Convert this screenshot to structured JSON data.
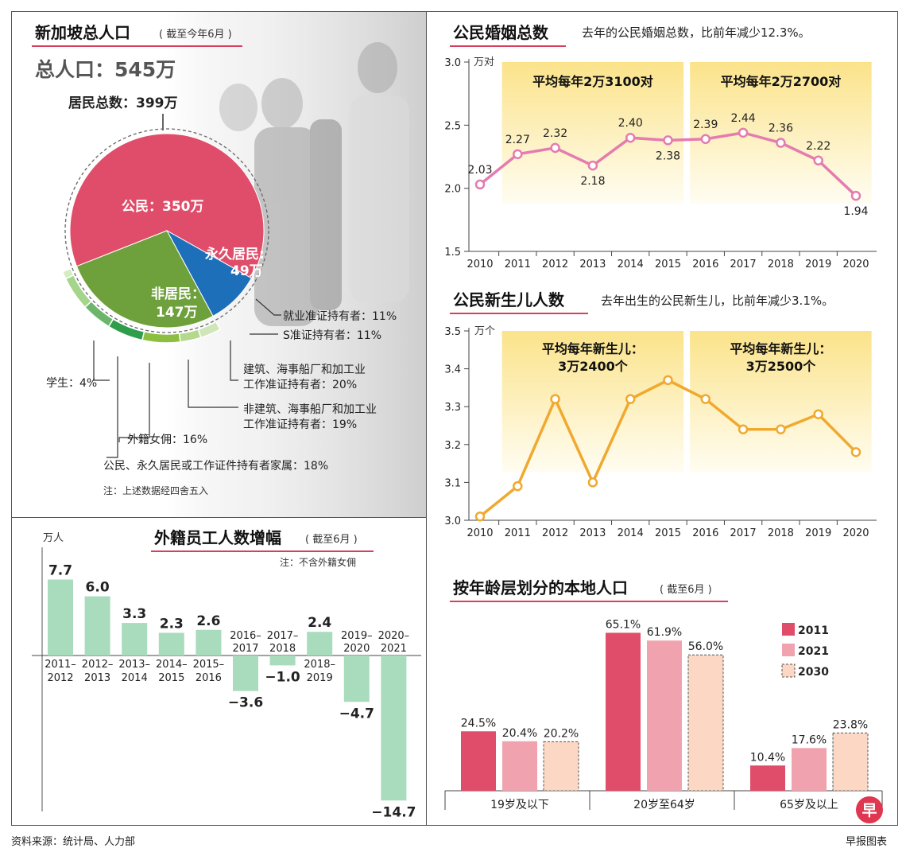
{
  "population": {
    "title": "新加坡总人口",
    "subtitle": "截至今年6月",
    "total": "总人口：545万",
    "residents": "居民总数：399万",
    "pie": [
      {
        "label": "公民：350万",
        "value": 350,
        "color": "#e04d6a"
      },
      {
        "label_line1": "永久居民:",
        "label_line2": "49万",
        "value": 49,
        "color": "#1e6fba"
      },
      {
        "label_line1": "非居民：",
        "label_line2": "147万",
        "value": 147,
        "color": "#6ea03c"
      }
    ],
    "breakdown": [
      {
        "label": "就业准证持有者：11%",
        "value": 11,
        "color": "#cfe6b8"
      },
      {
        "label": "S准证持有者：11%",
        "value": 11,
        "color": "#b5d98c"
      },
      {
        "label_line1": "建筑、海事船厂和加工业",
        "label_line2": "工作准证持有者：20%",
        "value": 20,
        "color": "#8cbf3f"
      },
      {
        "label_line1": "非建筑、海事船厂和加工业",
        "label_line2": "工作准证持有者：19%",
        "value": 19,
        "color": "#2e9e4b"
      },
      {
        "label": "外籍女佣：16%",
        "value": 16,
        "color": "#6bb66a"
      },
      {
        "label": "公民、永久居民或工作证件持有者家属：18%",
        "value": 18,
        "color": "#a5d58c"
      },
      {
        "label": "学生：4%",
        "value": 4,
        "color": "#d5ecc0"
      }
    ],
    "note": "注：上述数据经四舍五入"
  },
  "marriage": {
    "title": "公民婚姻总数",
    "desc": "去年的公民婚姻总数，比前年减少12.3%。",
    "unit": "万对",
    "bands": [
      {
        "label": "平均每年2万3100对",
        "from": 2011,
        "to": 2015
      },
      {
        "label": "平均每年2万2700对",
        "from": 2016,
        "to": 2020
      }
    ]
  },
  "births": {
    "title": "公民新生儿人数",
    "desc": "去年出生的公民新生儿，比前年减少3.1%。",
    "unit": "万个",
    "bands": [
      {
        "label_line1": "平均每年新生儿：",
        "label_line2": "3万2400个",
        "from": 2011,
        "to": 2015
      },
      {
        "label_line1": "平均每年新生儿：",
        "label_line2": "3万2500个",
        "from": 2016,
        "to": 2020
      }
    ]
  },
  "foreign": {
    "title": "外籍员工人数增幅",
    "subtitle": "截至6月",
    "note": "注：不含外籍女佣",
    "unit": "万人"
  },
  "age": {
    "title": "按年龄层划分的本地人口",
    "subtitle": "截至6月"
  },
  "footer": {
    "source": "资料来源：统计局、人力部",
    "credit": "早报图表",
    "logo": "早"
  },
  "chart_data": [
    {
      "type": "line",
      "title": "公民婚姻总数",
      "ylabel": "万对",
      "x": [
        "2010",
        "2011",
        "2012",
        "2013",
        "2014",
        "2015",
        "2016",
        "2017",
        "2018",
        "2019",
        "2020"
      ],
      "values": [
        2.03,
        2.27,
        2.32,
        2.18,
        2.4,
        2.38,
        2.39,
        2.44,
        2.36,
        2.22,
        1.94
      ],
      "value_labels": [
        "2.03",
        "2.27",
        "2.32",
        "2.18",
        "2.40",
        "2.38",
        "2.39",
        "2.44",
        "2.36",
        "2.22",
        "1.94"
      ],
      "ylim": [
        1.5,
        3.0
      ],
      "yticks": [
        "1.5",
        "2.0",
        "2.5",
        "3.0"
      ],
      "color": "#e47cb0"
    },
    {
      "type": "line",
      "title": "公民新生儿人数",
      "ylabel": "万个",
      "x": [
        "2010",
        "2011",
        "2012",
        "2013",
        "2014",
        "2015",
        "2016",
        "2017",
        "2018",
        "2019",
        "2020"
      ],
      "values": [
        3.01,
        3.09,
        3.32,
        3.1,
        3.32,
        3.37,
        3.32,
        3.24,
        3.24,
        3.28,
        3.18
      ],
      "ylim": [
        3.0,
        3.5
      ],
      "yticks": [
        "3.0",
        "3.1",
        "3.2",
        "3.3",
        "3.4",
        "3.5"
      ],
      "color": "#f0a92e"
    },
    {
      "type": "bar",
      "title": "外籍员工人数增幅",
      "ylabel": "万人",
      "categories": [
        [
          "2011–",
          "2012"
        ],
        [
          "2012–",
          "2013"
        ],
        [
          "2013–",
          "2014"
        ],
        [
          "2014–",
          "2015"
        ],
        [
          "2015–",
          "2016"
        ],
        [
          "2016–",
          "2017"
        ],
        [
          "2017–",
          "2018"
        ],
        [
          "2018–",
          "2019"
        ],
        [
          "2019–",
          "2020"
        ],
        [
          "2020–",
          "2021"
        ]
      ],
      "values": [
        7.7,
        6.0,
        3.3,
        2.3,
        2.6,
        -3.6,
        -1.0,
        2.4,
        -4.7,
        -14.7
      ],
      "value_labels": [
        "7.7",
        "6.0",
        "3.3",
        "2.3",
        "2.6",
        "−3.6",
        "−1.0",
        "2.4",
        "−4.7",
        "−14.7"
      ],
      "color": "#a9dbbd"
    },
    {
      "type": "bar",
      "title": "按年龄层划分的本地人口",
      "categories": [
        "19岁及以下",
        "20岁至64岁",
        "65岁及以上"
      ],
      "series": [
        {
          "name": "2011",
          "values": [
            24.5,
            65.1,
            10.4
          ],
          "value_labels": [
            "24.5%",
            "65.1%",
            "10.4%"
          ],
          "color": "#e04d6a"
        },
        {
          "name": "2021",
          "values": [
            20.4,
            61.9,
            17.6
          ],
          "value_labels": [
            "20.4%",
            "61.9%",
            "17.6%"
          ],
          "color": "#f0a3ae"
        },
        {
          "name": "2030",
          "values": [
            20.2,
            56.0,
            23.8
          ],
          "value_labels": [
            "20.2%",
            "56.0%",
            "23.8%"
          ],
          "color": "#fbd7c4"
        }
      ]
    }
  ]
}
